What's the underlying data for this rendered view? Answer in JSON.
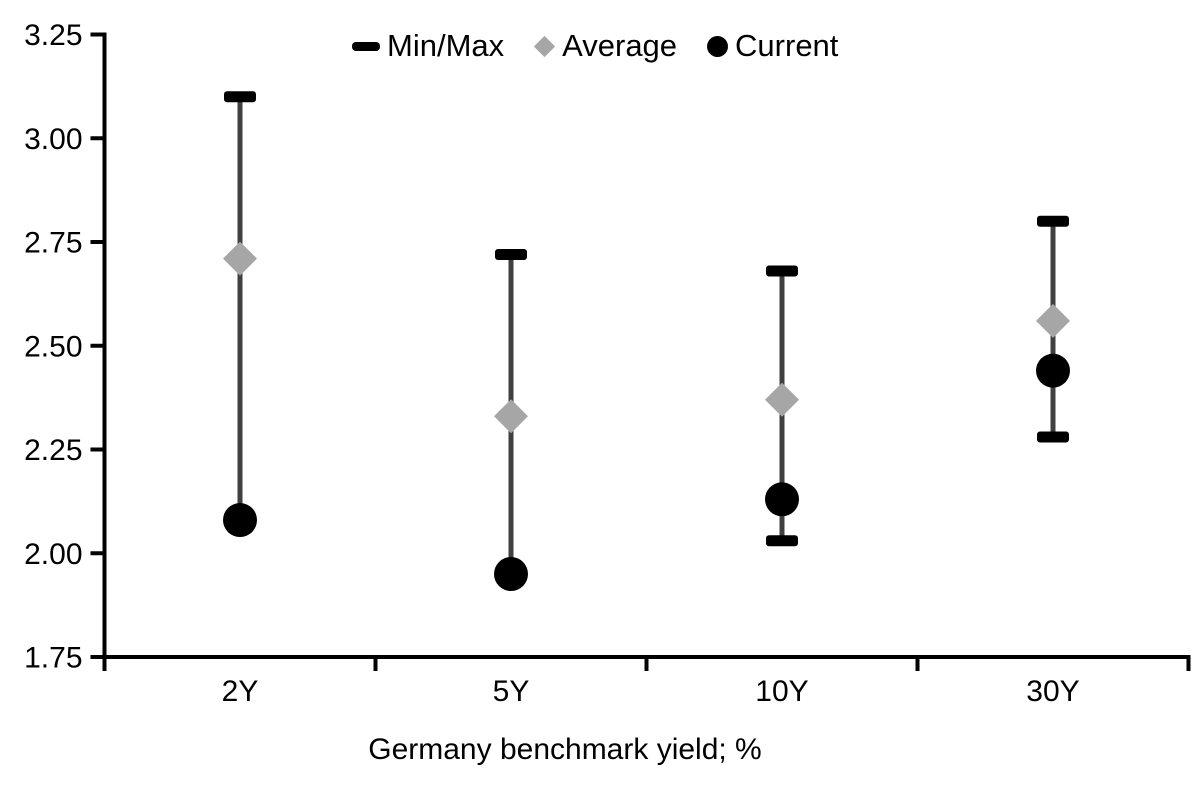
{
  "chart_data": {
    "type": "scatter",
    "title": "",
    "xlabel": "Germany benchmark yield; %",
    "ylabel": "",
    "categories": [
      "2Y",
      "5Y",
      "10Y",
      "30Y"
    ],
    "ylim": [
      1.75,
      3.25
    ],
    "ytick_labels": [
      "3.25",
      "3.00",
      "2.75",
      "2.50",
      "2.25",
      "2.00",
      "1.75"
    ],
    "grid": false,
    "legend_position": "top",
    "series": [
      {
        "name": "Min/Max",
        "marker": "dash",
        "min_values": [
          2.08,
          1.95,
          2.03,
          2.28
        ],
        "max_values": [
          3.1,
          2.72,
          2.68,
          2.8
        ]
      },
      {
        "name": "Average",
        "marker": "diamond",
        "values": [
          2.71,
          2.33,
          2.37,
          2.56
        ]
      },
      {
        "name": "Current",
        "marker": "circle",
        "values": [
          2.08,
          1.95,
          2.13,
          2.44
        ]
      }
    ],
    "colors": {
      "range_line": "#404040",
      "cap": "#000000",
      "average": "#a6a6a6",
      "current": "#000000",
      "axis": "#000000",
      "text": "#000000",
      "background": "#ffffff"
    }
  }
}
